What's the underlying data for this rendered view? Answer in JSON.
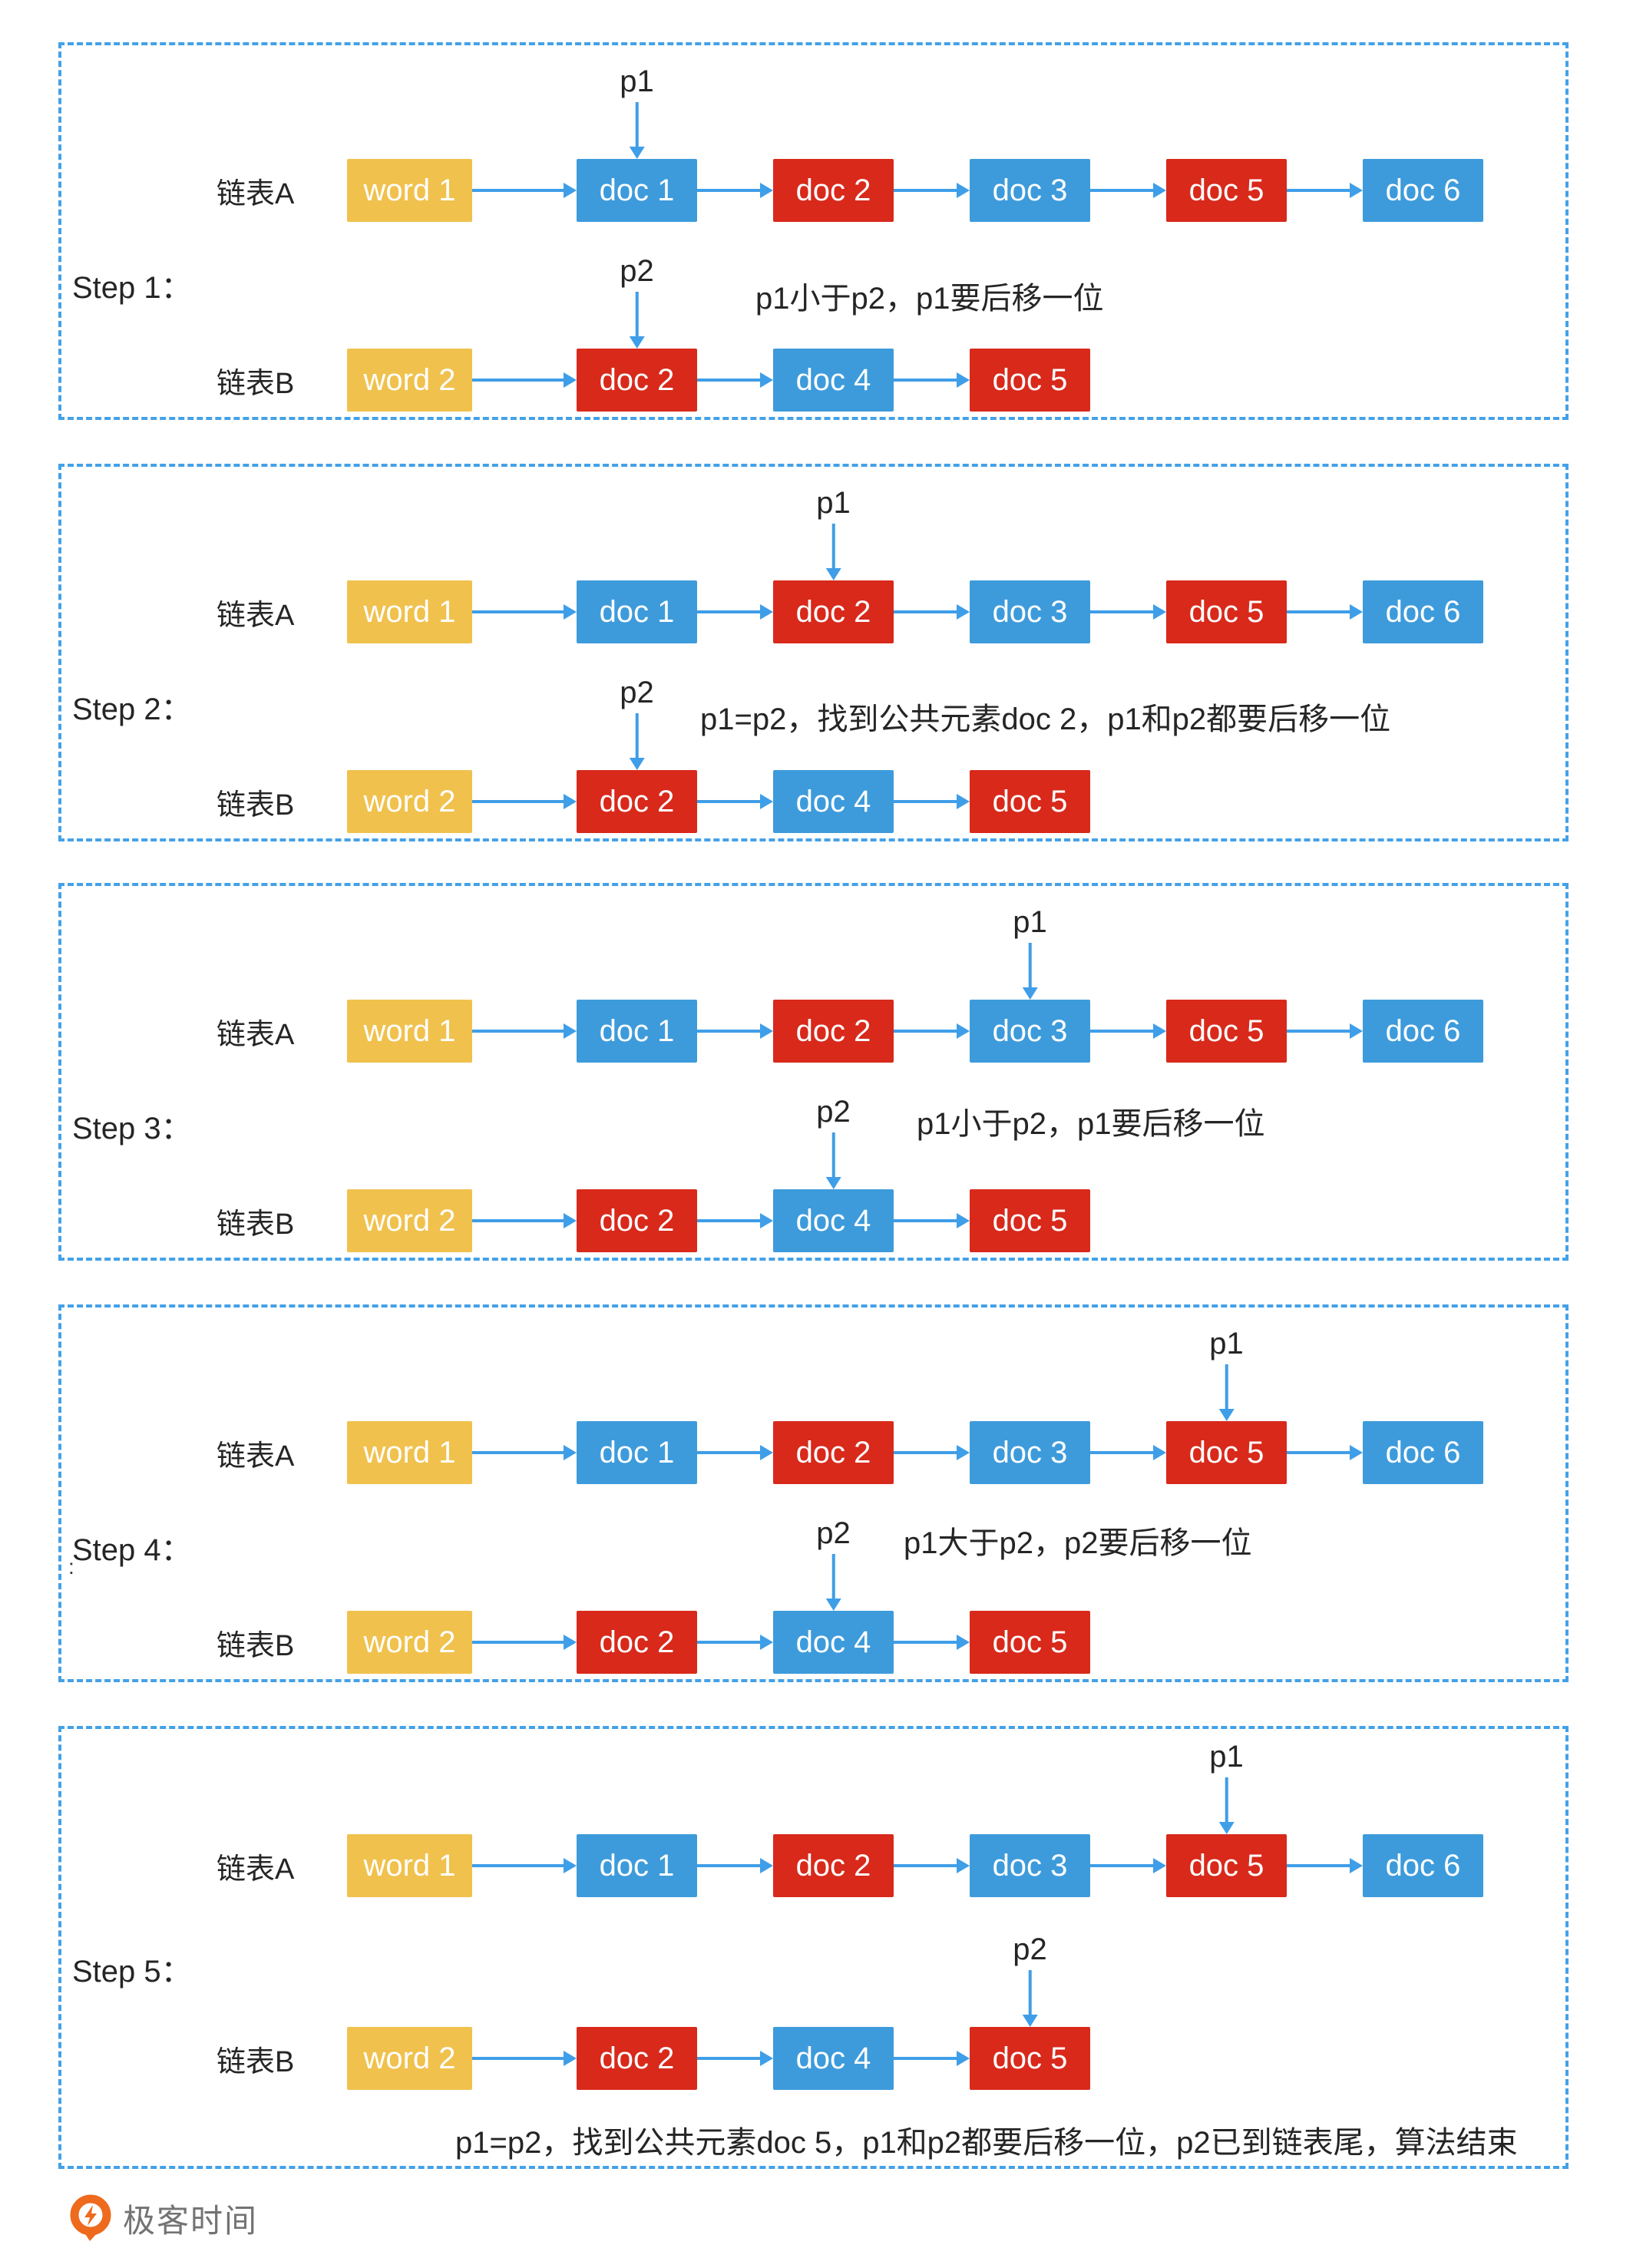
{
  "colors": {
    "node_yellow": "#F0C14D",
    "node_blue": "#3D9BDB",
    "node_red": "#D8291B",
    "arrow_blue": "#3F9EE8",
    "panel_border_blue": "#44A1E8",
    "text_dark": "#252525",
    "brand_orange": "#EE6A1D",
    "brand_gray": "#737373"
  },
  "lists": {
    "A": {
      "label": "链表A",
      "nodes": [
        {
          "text": "word 1",
          "color": "yellow"
        },
        {
          "text": "doc 1",
          "color": "blue"
        },
        {
          "text": "doc 2",
          "color": "red"
        },
        {
          "text": "doc 3",
          "color": "blue"
        },
        {
          "text": "doc 5",
          "color": "red"
        },
        {
          "text": "doc 6",
          "color": "blue"
        }
      ]
    },
    "B": {
      "label": "链表B",
      "nodes": [
        {
          "text": "word 2",
          "color": "yellow"
        },
        {
          "text": "doc 2",
          "color": "red"
        },
        {
          "text": "doc 4",
          "color": "blue"
        },
        {
          "text": "doc 5",
          "color": "red"
        }
      ]
    }
  },
  "pointers": {
    "p1_label": "p1",
    "p2_label": "p2"
  },
  "steps": [
    {
      "label": "Step 1：",
      "p1_node": 1,
      "p2_node": 1,
      "note": "p1小于p2，p1要后移一位"
    },
    {
      "label": "Step 2：",
      "p1_node": 2,
      "p2_node": 1,
      "note": "p1=p2，找到公共元素doc 2，p1和p2都要后移一位"
    },
    {
      "label": "Step 3：",
      "p1_node": 3,
      "p2_node": 2,
      "note": "p1小于p2，p1要后移一位"
    },
    {
      "label": "Step 4：",
      "p1_node": 4,
      "p2_node": 2,
      "note": "p1大于p2，p2要后移一位",
      "stray_dot": ".",
      "stray_colon": ":"
    },
    {
      "label": "Step 5：",
      "p1_node": 4,
      "p2_node": 3,
      "note": "p1=p2，找到公共元素doc 5，p1和p2都要后移一位，p2已到链表尾，算法结束"
    }
  ],
  "footer": {
    "brand": "极客时间"
  }
}
